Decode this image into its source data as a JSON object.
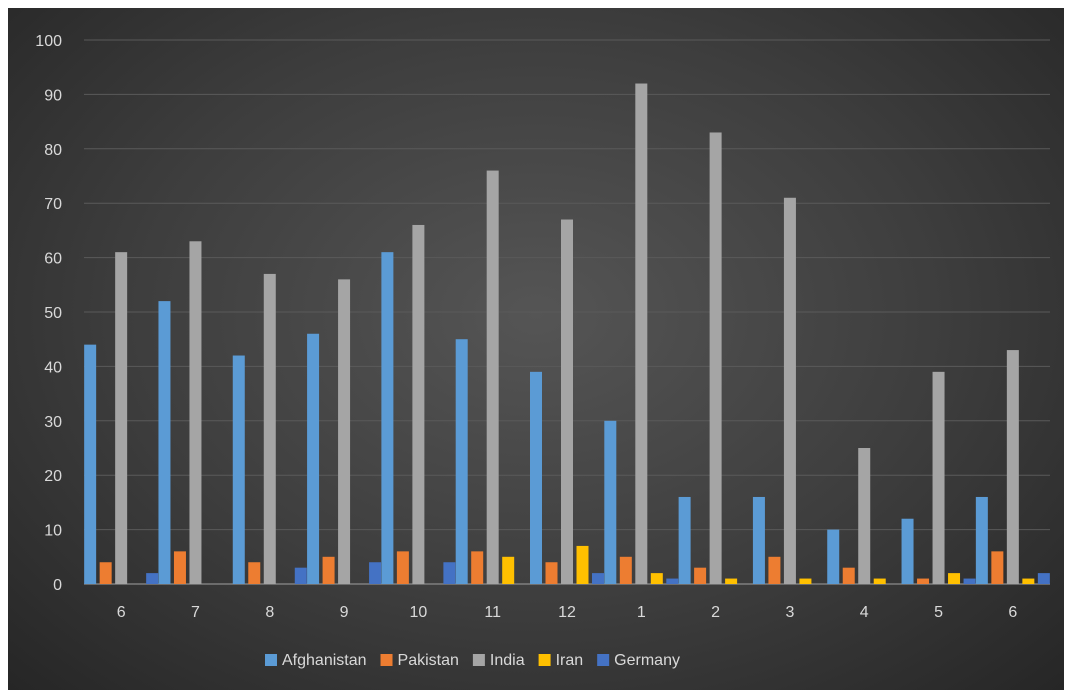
{
  "chart_data": {
    "type": "bar",
    "title": "",
    "xlabel": "",
    "ylabel": "",
    "ylim": [
      0,
      100
    ],
    "yticks": [
      0,
      10,
      20,
      30,
      40,
      50,
      60,
      70,
      80,
      90,
      100
    ],
    "categories": [
      "6",
      "7",
      "8",
      "9",
      "10",
      "11",
      "12",
      "1",
      "2",
      "3",
      "4",
      "5",
      "6"
    ],
    "grid": true,
    "legend_position": "bottom",
    "series": [
      {
        "name": "Afghanistan",
        "color": "#5b9bd5",
        "values": [
          44,
          52,
          42,
          46,
          61,
          45,
          39,
          30,
          16,
          16,
          10,
          12,
          16
        ]
      },
      {
        "name": "Pakistan",
        "color": "#ed7d31",
        "values": [
          4,
          6,
          4,
          5,
          6,
          6,
          4,
          5,
          3,
          5,
          3,
          1,
          6
        ]
      },
      {
        "name": "India",
        "color": "#a5a5a5",
        "values": [
          61,
          63,
          57,
          56,
          66,
          76,
          67,
          92,
          83,
          71,
          25,
          39,
          43
        ]
      },
      {
        "name": "Iran",
        "color": "#ffc000",
        "values": [
          0,
          0,
          0,
          0,
          0,
          5,
          7,
          2,
          1,
          1,
          1,
          2,
          1
        ]
      },
      {
        "name": "Germany",
        "color": "#4472c4",
        "values": [
          2,
          0,
          3,
          4,
          4,
          0,
          2,
          1,
          0,
          0,
          0,
          1,
          2
        ]
      }
    ]
  }
}
